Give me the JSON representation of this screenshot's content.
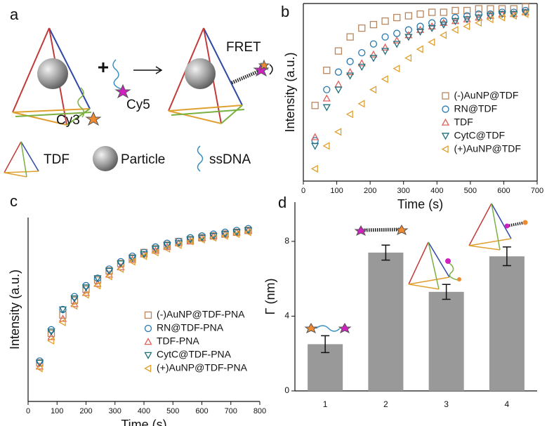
{
  "panel_a": {
    "label": "a",
    "fret": "FRET",
    "cy3": "Cy3",
    "cy5": "Cy5",
    "legend": [
      "TDF",
      "Particle",
      "ssDNA"
    ]
  },
  "chart_data": [
    {
      "type": "scatter",
      "label": "b",
      "xlabel": "Time (s)",
      "ylabel": "Intensity (a.u.)",
      "legend": "right",
      "x": [
        35,
        70,
        105,
        140,
        175,
        210,
        245,
        280,
        315,
        350,
        385,
        420,
        455,
        490,
        525,
        560,
        595,
        630,
        665
      ],
      "xlim": [
        0,
        700
      ],
      "xticks": [
        0,
        100,
        200,
        300,
        400,
        500,
        600,
        700
      ],
      "ylim": [
        0,
        1.01
      ],
      "series": [
        {
          "name": "(-)AuNP@TDF",
          "color": "#b8875f",
          "marker": "square",
          "values": [
            0.43,
            0.63,
            0.74,
            0.82,
            0.87,
            0.89,
            0.91,
            0.93,
            0.94,
            0.95,
            0.96,
            0.96,
            0.97,
            0.97,
            0.98,
            0.98,
            0.98,
            0.98,
            0.99
          ]
        },
        {
          "name": "RN@TDF",
          "color": "#2878b0",
          "marker": "circle",
          "values": [
            0.23,
            0.52,
            0.62,
            0.68,
            0.73,
            0.78,
            0.82,
            0.84,
            0.86,
            0.88,
            0.9,
            0.91,
            0.93,
            0.94,
            0.95,
            0.95,
            0.96,
            0.96,
            0.97
          ]
        },
        {
          "name": "TDF",
          "color": "#e0605a",
          "marker": "triangle-up",
          "values": [
            0.25,
            0.47,
            0.55,
            0.62,
            0.67,
            0.72,
            0.76,
            0.8,
            0.83,
            0.86,
            0.88,
            0.9,
            0.91,
            0.92,
            0.93,
            0.94,
            0.95,
            0.95,
            0.96
          ]
        },
        {
          "name": "CytC@TDF",
          "color": "#1f6f7c",
          "marker": "triangle-down",
          "values": [
            0.2,
            0.42,
            0.52,
            0.6,
            0.65,
            0.7,
            0.74,
            0.78,
            0.82,
            0.85,
            0.87,
            0.89,
            0.91,
            0.92,
            0.93,
            0.94,
            0.95,
            0.95,
            0.96
          ]
        },
        {
          "name": "(+)AuNP@TDF",
          "color": "#e0a030",
          "marker": "triangle-left",
          "values": [
            0.07,
            0.2,
            0.28,
            0.38,
            0.44,
            0.52,
            0.58,
            0.64,
            0.7,
            0.75,
            0.79,
            0.83,
            0.86,
            0.88,
            0.9,
            0.92,
            0.93,
            0.94,
            0.95
          ]
        }
      ]
    },
    {
      "type": "scatter",
      "label": "c",
      "xlabel": "Time (s)",
      "ylabel": "Intensity (a.u.)",
      "legend": "lower right",
      "x": [
        40,
        80,
        120,
        160,
        200,
        240,
        280,
        320,
        360,
        400,
        440,
        480,
        520,
        560,
        600,
        640,
        680,
        720,
        760
      ],
      "xlim": [
        0,
        800
      ],
      "xticks": [
        0,
        100,
        200,
        300,
        400,
        500,
        600,
        700,
        800
      ],
      "ylim": [
        0,
        1
      ],
      "series": [
        {
          "name": "(-)AuNP@TDF-PNA",
          "color": "#b8875f",
          "marker": "square",
          "values": [
            0.21,
            0.37,
            0.47,
            0.55,
            0.61,
            0.66,
            0.71,
            0.75,
            0.78,
            0.81,
            0.83,
            0.85,
            0.87,
            0.88,
            0.89,
            0.9,
            0.91,
            0.92,
            0.93
          ]
        },
        {
          "name": "RN@TDF-PNA",
          "color": "#2878b0",
          "marker": "circle",
          "values": [
            0.22,
            0.39,
            0.5,
            0.57,
            0.63,
            0.67,
            0.72,
            0.76,
            0.79,
            0.81,
            0.84,
            0.86,
            0.87,
            0.89,
            0.9,
            0.91,
            0.92,
            0.93,
            0.94
          ]
        },
        {
          "name": "TDF-PNA",
          "color": "#e0605a",
          "marker": "triangle-up",
          "values": [
            0.19,
            0.35,
            0.45,
            0.53,
            0.59,
            0.64,
            0.69,
            0.73,
            0.77,
            0.8,
            0.82,
            0.84,
            0.86,
            0.87,
            0.89,
            0.9,
            0.91,
            0.92,
            0.93
          ]
        },
        {
          "name": "CytC@TDF-PNA",
          "color": "#1f6f7c",
          "marker": "triangle-down",
          "values": [
            0.21,
            0.38,
            0.5,
            0.56,
            0.62,
            0.67,
            0.71,
            0.75,
            0.78,
            0.8,
            0.83,
            0.85,
            0.86,
            0.88,
            0.89,
            0.9,
            0.91,
            0.92,
            0.93
          ]
        },
        {
          "name": "(+)AuNP@TDF-PNA",
          "color": "#e0a030",
          "marker": "triangle-left",
          "values": [
            0.18,
            0.33,
            0.43,
            0.52,
            0.58,
            0.63,
            0.68,
            0.72,
            0.76,
            0.79,
            0.81,
            0.83,
            0.85,
            0.87,
            0.88,
            0.89,
            0.9,
            0.91,
            0.92
          ]
        }
      ]
    },
    {
      "type": "bar",
      "label": "d",
      "ylabel": "Γ (nm)",
      "categories": [
        "1",
        "2",
        "3",
        "4"
      ],
      "values": [
        2.5,
        7.4,
        5.3,
        7.2
      ],
      "errors": [
        0.45,
        0.4,
        0.4,
        0.5
      ],
      "color": "#999999",
      "ylim": [
        0,
        10.1
      ],
      "yticks": [
        0,
        4,
        8
      ]
    }
  ]
}
